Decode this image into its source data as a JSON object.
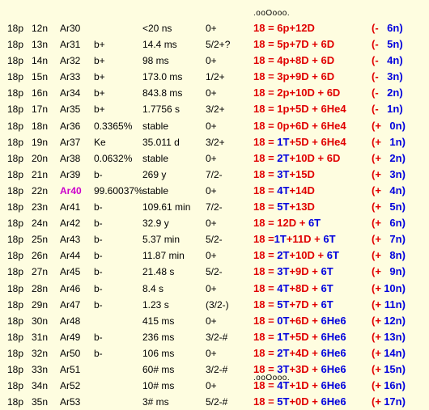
{
  "dots": ".ooOooo.",
  "colors": {
    "background": "#fefde0",
    "red": "#e00000",
    "blue": "#0000dd",
    "highlight": "#cc00cc"
  },
  "rows": [
    {
      "p": "18p",
      "n": "12n",
      "iso": "Ar30",
      "mode": "",
      "hl": "<20 ns",
      "spin": "0+",
      "eq": [
        [
          "r",
          "18 = 6p+12D"
        ]
      ],
      "bal": [
        [
          "r",
          "(-"
        ],
        [
          "b",
          "6n)"
        ]
      ]
    },
    {
      "p": "18p",
      "n": "13n",
      "iso": "Ar31",
      "mode": "b+",
      "hl": "14.4 ms",
      "spin": "5/2+?",
      "eq": [
        [
          "r",
          "18 = 5p+7D  + 6D"
        ]
      ],
      "bal": [
        [
          "r",
          "(-"
        ],
        [
          "b",
          "5n)"
        ]
      ]
    },
    {
      "p": "18p",
      "n": "14n",
      "iso": "Ar32",
      "mode": "b+",
      "hl": "98 ms",
      "spin": "0+",
      "eq": [
        [
          "r",
          "18 = 4p+8D  + 6D"
        ]
      ],
      "bal": [
        [
          "r",
          "(-"
        ],
        [
          "b",
          "4n)"
        ]
      ]
    },
    {
      "p": "18p",
      "n": "15n",
      "iso": "Ar33",
      "mode": "b+",
      "hl": "173.0 ms",
      "spin": "1/2+",
      "eq": [
        [
          "r",
          "18 = 3p+9D  + 6D"
        ]
      ],
      "bal": [
        [
          "r",
          "(-"
        ],
        [
          "b",
          "3n)"
        ]
      ]
    },
    {
      "p": "18p",
      "n": "16n",
      "iso": "Ar34",
      "mode": "b+",
      "hl": "843.8 ms",
      "spin": "0+",
      "eq": [
        [
          "r",
          "18 = 2p+10D + 6D"
        ]
      ],
      "bal": [
        [
          "r",
          "(-"
        ],
        [
          "b",
          "2n)"
        ]
      ]
    },
    {
      "p": "18p",
      "n": "17n",
      "iso": "Ar35",
      "mode": "b+",
      "hl": "1.7756 s",
      "spin": "3/2+",
      "eq": [
        [
          "r",
          "18 = 1p+5D + 6He4"
        ]
      ],
      "bal": [
        [
          "r",
          "(-"
        ],
        [
          "b",
          "1n)"
        ]
      ]
    },
    {
      "p": "18p",
      "n": "18n",
      "iso": "Ar36",
      "mode": "0.3365%",
      "hl": "stable",
      "spin": "0+",
      "eq": [
        [
          "r",
          "18 = 0p+6D + 6He4"
        ]
      ],
      "bal": [
        [
          "r",
          "(+"
        ],
        [
          "b",
          "0n)"
        ]
      ]
    },
    {
      "p": "18p",
      "n": "19n",
      "iso": "Ar37",
      "mode": "Ke",
      "hl": "35.011 d",
      "spin": "3/2+",
      "eq": [
        [
          "r",
          "18 = "
        ],
        [
          "b",
          "1T"
        ],
        [
          "r",
          "+5D + 6He4"
        ]
      ],
      "bal": [
        [
          "r",
          "(+"
        ],
        [
          "b",
          "1n)"
        ]
      ]
    },
    {
      "p": "18p",
      "n": "20n",
      "iso": "Ar38",
      "mode": "0.0632%",
      "hl": "stable",
      "spin": "0+",
      "eq": [
        [
          "r",
          "18 = "
        ],
        [
          "b",
          "2T"
        ],
        [
          "r",
          "+10D + 6D"
        ]
      ],
      "bal": [
        [
          "r",
          "(+"
        ],
        [
          "b",
          "2n)"
        ]
      ]
    },
    {
      "p": "18p",
      "n": "21n",
      "iso": "Ar39",
      "mode": "b-",
      "hl": "269 y",
      "spin": "7/2-",
      "eq": [
        [
          "r",
          "18 = "
        ],
        [
          "b",
          "3T"
        ],
        [
          "r",
          "+15D"
        ]
      ],
      "bal": [
        [
          "r",
          "(+"
        ],
        [
          "b",
          "3n)"
        ]
      ]
    },
    {
      "p": "18p",
      "n": "22n",
      "iso": "Ar40",
      "mode": "99.60037%",
      "hl": "stable",
      "spin": "0+",
      "eq": [
        [
          "r",
          "18 = "
        ],
        [
          "b",
          "4T"
        ],
        [
          "r",
          "+14D"
        ]
      ],
      "bal": [
        [
          "r",
          "(+"
        ],
        [
          "b",
          "4n)"
        ]
      ],
      "highlight": true
    },
    {
      "p": "18p",
      "n": "23n",
      "iso": "Ar41",
      "mode": "b-",
      "hl": "109.61 min",
      "spin": "7/2-",
      "eq": [
        [
          "r",
          "18 = "
        ],
        [
          "b",
          "5T"
        ],
        [
          "r",
          "+13D"
        ]
      ],
      "bal": [
        [
          "r",
          "(+"
        ],
        [
          "b",
          "5n)"
        ]
      ]
    },
    {
      "p": "18p",
      "n": "24n",
      "iso": "Ar42",
      "mode": "b-",
      "hl": "32.9 y",
      "spin": "0+",
      "eq": [
        [
          "r",
          "18 = 12D + "
        ],
        [
          "b",
          "6T"
        ]
      ],
      "bal": [
        [
          "r",
          "(+"
        ],
        [
          "b",
          "6n)"
        ]
      ]
    },
    {
      "p": "18p",
      "n": "25n",
      "iso": "Ar43",
      "mode": "b-",
      "hl": "5.37 min",
      "spin": "5/2-",
      "eq": [
        [
          "r",
          "18 ="
        ],
        [
          "b",
          "1T"
        ],
        [
          "r",
          "+11D + "
        ],
        [
          "b",
          "6T"
        ]
      ],
      "bal": [
        [
          "r",
          "(+"
        ],
        [
          "b",
          "7n)"
        ]
      ]
    },
    {
      "p": "18p",
      "n": "26n",
      "iso": "Ar44",
      "mode": "b-",
      "hl": "11.87 min",
      "spin": "0+",
      "eq": [
        [
          "r",
          "18 = "
        ],
        [
          "b",
          "2T"
        ],
        [
          "r",
          "+10D + "
        ],
        [
          "b",
          "6T"
        ]
      ],
      "bal": [
        [
          "r",
          "(+"
        ],
        [
          "b",
          "8n)"
        ]
      ]
    },
    {
      "p": "18p",
      "n": "27n",
      "iso": "Ar45",
      "mode": "b-",
      "hl": "21.48 s",
      "spin": "5/2-",
      "eq": [
        [
          "r",
          "18 = "
        ],
        [
          "b",
          "3T"
        ],
        [
          "r",
          "+9D + "
        ],
        [
          "b",
          "6T"
        ]
      ],
      "bal": [
        [
          "r",
          "(+"
        ],
        [
          "b",
          "9n)"
        ]
      ]
    },
    {
      "p": "18p",
      "n": "28n",
      "iso": "Ar46",
      "mode": "b-",
      "hl": "8.4 s",
      "spin": "0+",
      "eq": [
        [
          "r",
          "18 = "
        ],
        [
          "b",
          "4T"
        ],
        [
          "r",
          "+8D + "
        ],
        [
          "b",
          "6T"
        ]
      ],
      "bal": [
        [
          "r",
          "(+"
        ],
        [
          "b",
          "10n)"
        ]
      ]
    },
    {
      "p": "18p",
      "n": "29n",
      "iso": "Ar47",
      "mode": "b-",
      "hl": "1.23 s",
      "spin": "(3/2-)",
      "eq": [
        [
          "r",
          "18 = "
        ],
        [
          "b",
          "5T"
        ],
        [
          "r",
          "+7D + "
        ],
        [
          "b",
          "6T"
        ]
      ],
      "bal": [
        [
          "r",
          "(+"
        ],
        [
          "b",
          "11n)"
        ]
      ]
    },
    {
      "p": "18p",
      "n": "30n",
      "iso": "Ar48",
      "mode": "",
      "hl": "415 ms",
      "spin": "0+",
      "eq": [
        [
          "r",
          "18 = "
        ],
        [
          "b",
          "0T"
        ],
        [
          "r",
          "+6D + "
        ],
        [
          "b",
          "6He6"
        ]
      ],
      "bal": [
        [
          "r",
          "(+"
        ],
        [
          "b",
          "12n)"
        ]
      ]
    },
    {
      "p": "18p",
      "n": "31n",
      "iso": "Ar49",
      "mode": "b-",
      "hl": "236 ms",
      "spin": "3/2-#",
      "eq": [
        [
          "r",
          "18 = "
        ],
        [
          "b",
          "1T"
        ],
        [
          "r",
          "+5D + "
        ],
        [
          "b",
          "6He6"
        ]
      ],
      "bal": [
        [
          "r",
          "(+"
        ],
        [
          "b",
          "13n)"
        ]
      ]
    },
    {
      "p": "18p",
      "n": "32n",
      "iso": "Ar50",
      "mode": "b-",
      "hl": "106 ms",
      "spin": "0+",
      "eq": [
        [
          "r",
          "18 = "
        ],
        [
          "b",
          "2T"
        ],
        [
          "r",
          "+4D + "
        ],
        [
          "b",
          "6He6"
        ]
      ],
      "bal": [
        [
          "r",
          "(+"
        ],
        [
          "b",
          "14n)"
        ]
      ]
    },
    {
      "p": "18p",
      "n": "33n",
      "iso": "Ar51",
      "mode": "",
      "hl": "60# ms",
      "spin": "3/2-#",
      "eq": [
        [
          "r",
          "18 = "
        ],
        [
          "b",
          "3T"
        ],
        [
          "r",
          "+3D + "
        ],
        [
          "b",
          "6He6"
        ]
      ],
      "bal": [
        [
          "r",
          "(+"
        ],
        [
          "b",
          "15n)"
        ]
      ]
    },
    {
      "p": "18p",
      "n": "34n",
      "iso": "Ar52",
      "mode": "",
      "hl": "10# ms",
      "spin": "0+",
      "eq": [
        [
          "r",
          "18 = "
        ],
        [
          "b",
          "4T"
        ],
        [
          "r",
          "+1D + "
        ],
        [
          "b",
          "6He6"
        ]
      ],
      "bal": [
        [
          "r",
          "(+"
        ],
        [
          "b",
          "16n)"
        ]
      ]
    },
    {
      "p": "18p",
      "n": "35n",
      "iso": "Ar53",
      "mode": "",
      "hl": "3# ms",
      "spin": "5/2-#",
      "eq": [
        [
          "r",
          "18 = "
        ],
        [
          "b",
          "5T"
        ],
        [
          "r",
          "+0D + "
        ],
        [
          "b",
          "6He6"
        ]
      ],
      "bal": [
        [
          "r",
          "(+"
        ],
        [
          "b",
          "17n)"
        ]
      ]
    }
  ]
}
